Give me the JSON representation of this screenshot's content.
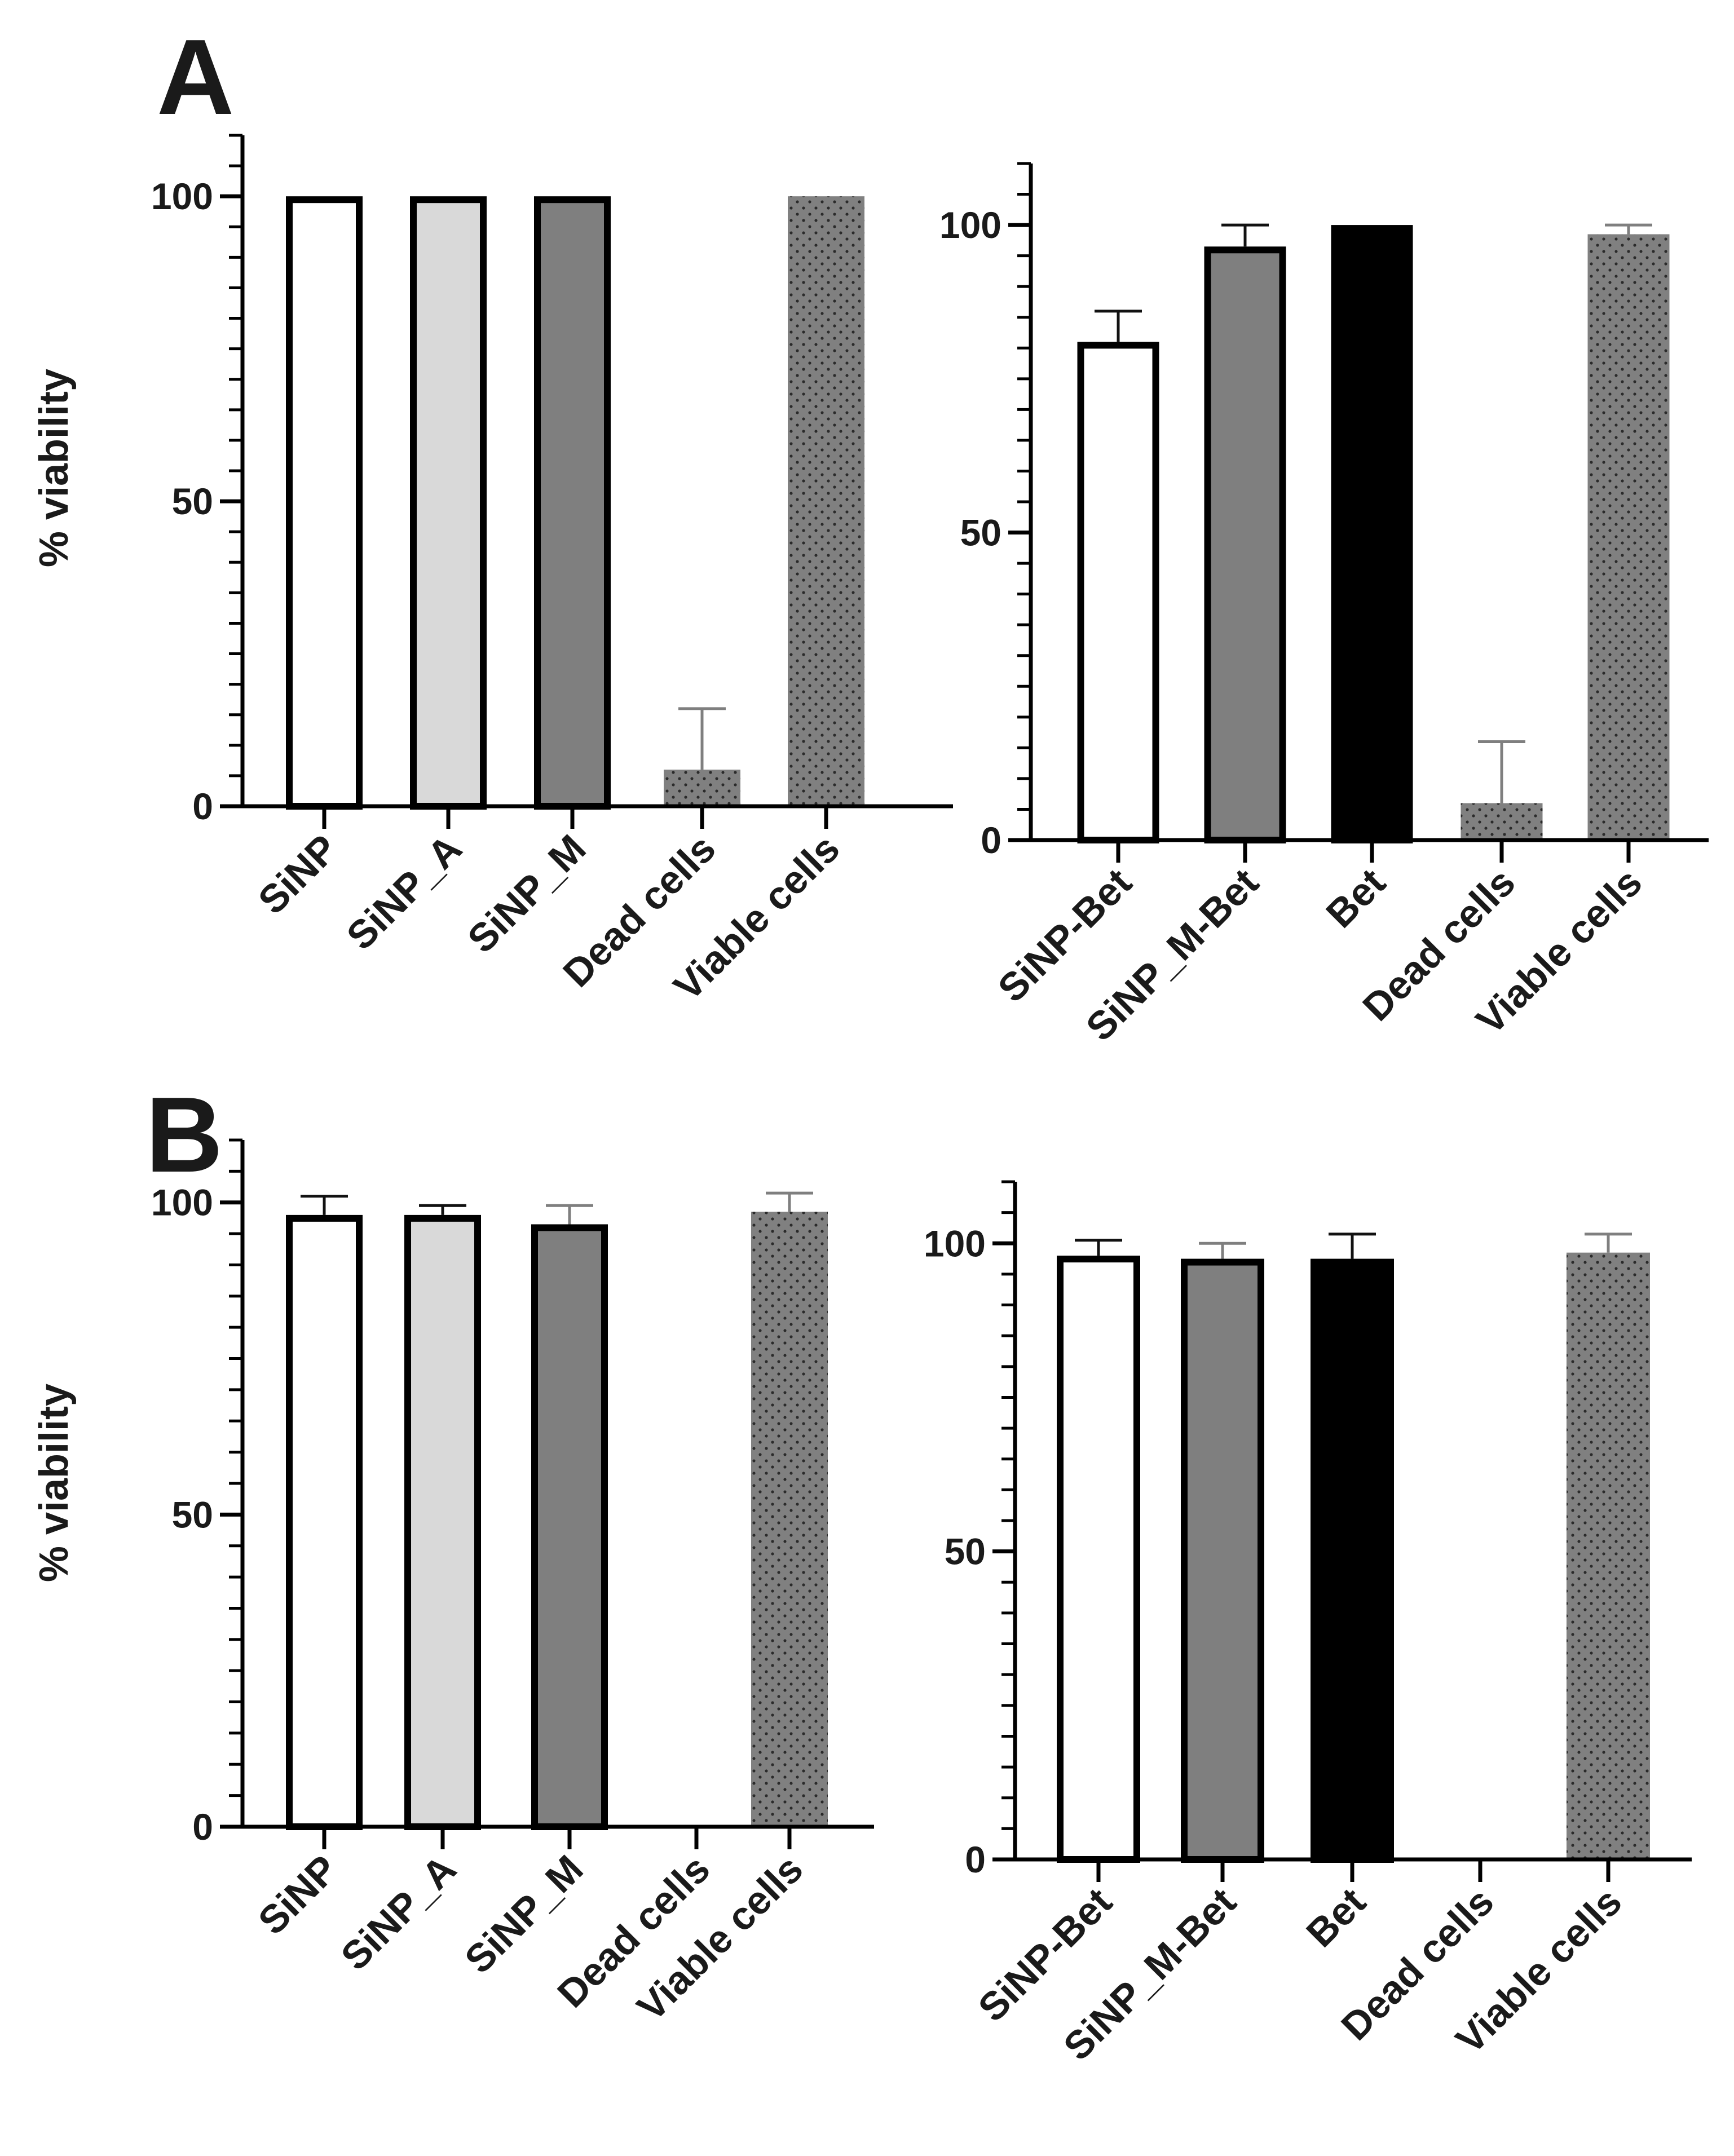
{
  "figure": {
    "panel_letters": [
      "A",
      "B"
    ]
  },
  "colors": {
    "white": "#ffffff",
    "light_gray": "#d9d9d9",
    "mid_gray": "#7f7f7f",
    "black": "#000000",
    "dotted_gray": "#808080",
    "outline": "#000000",
    "error_bar": "#7f7f7f"
  },
  "chart_data": [
    {
      "id": "A-left",
      "panel": "A",
      "type": "bar",
      "ylabel": "% viability",
      "ylim": [
        0,
        110
      ],
      "yticks": [
        0,
        50,
        100
      ],
      "categories": [
        "SiNP",
        "SiNP_A",
        "SiNP_M",
        "Dead cells",
        "Viable cells"
      ],
      "values": [
        100,
        100,
        100,
        6,
        100
      ],
      "errors": [
        0,
        0,
        0,
        10,
        0
      ],
      "fills": [
        "white",
        "light_gray",
        "mid_gray",
        "dotted_gray",
        "dotted_gray"
      ]
    },
    {
      "id": "A-right",
      "panel": "A",
      "type": "bar",
      "ylabel": "",
      "ylim": [
        0,
        110
      ],
      "yticks": [
        0,
        50,
        100
      ],
      "categories": [
        "SiNP-Bet",
        "SiNP_M-Bet",
        "Bet",
        "Dead cells",
        "Viable cells"
      ],
      "values": [
        81,
        96.5,
        100,
        6,
        98.5
      ],
      "errors": [
        5,
        3.5,
        0,
        10,
        1.5
      ],
      "fills": [
        "white",
        "mid_gray",
        "black",
        "dotted_gray",
        "dotted_gray"
      ]
    },
    {
      "id": "B-left",
      "panel": "B",
      "type": "bar",
      "ylabel": "% viability",
      "ylim": [
        0,
        110
      ],
      "yticks": [
        0,
        50,
        100
      ],
      "categories": [
        "SiNP",
        "SiNP_A",
        "SiNP_M",
        "Dead cells",
        "Viable cells"
      ],
      "values": [
        98,
        98,
        96.5,
        0,
        98.5
      ],
      "errors": [
        3,
        1.5,
        3,
        0,
        3
      ],
      "fills": [
        "white",
        "light_gray",
        "mid_gray",
        "dotted_gray",
        "dotted_gray"
      ]
    },
    {
      "id": "B-right",
      "panel": "B",
      "type": "bar",
      "ylabel": "",
      "ylim": [
        0,
        110
      ],
      "yticks": [
        0,
        50,
        100
      ],
      "categories": [
        "SiNP-Bet",
        "SiNP_M-Bet",
        "Bet",
        "Dead cells",
        "Viable cells"
      ],
      "values": [
        98,
        97.5,
        97.5,
        0,
        98.5
      ],
      "errors": [
        2.5,
        2.5,
        4,
        0,
        3
      ],
      "fills": [
        "white",
        "mid_gray",
        "black",
        "dotted_gray",
        "dotted_gray"
      ]
    }
  ]
}
